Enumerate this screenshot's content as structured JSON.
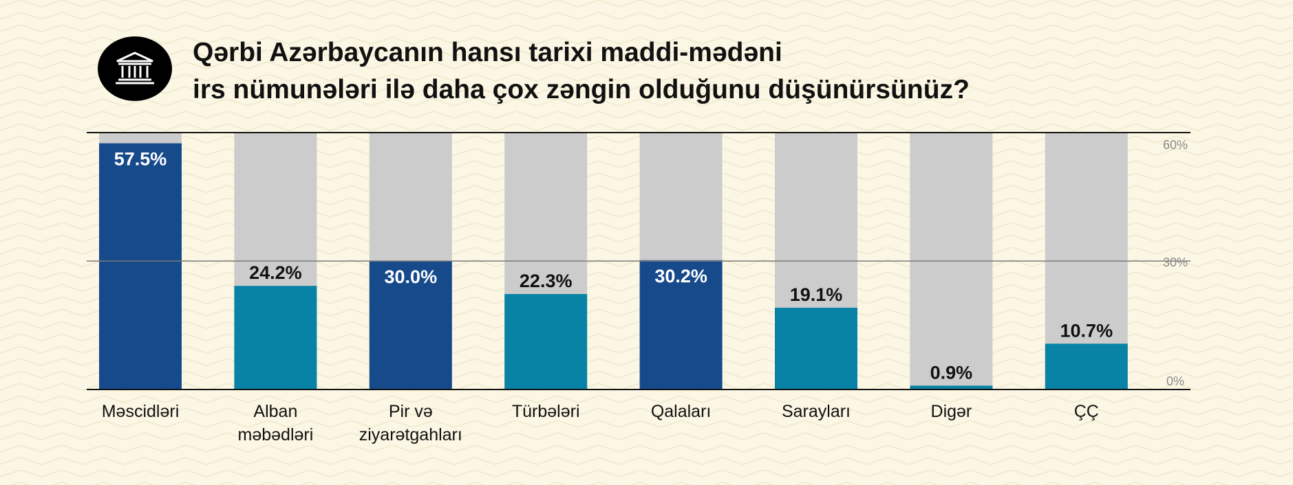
{
  "title_lines": [
    "Qərbi Azərbaycanın hansı tarixi maddi-mədəni",
    "irs nümunələri ilə daha çox zəngin olduğunu düşünürsünüz?"
  ],
  "colors": {
    "background": "#fbf7e4",
    "track": "#cccccc",
    "dark_blue": "#174a8b",
    "teal": "#0883a6",
    "text": "#111111"
  },
  "icon": "museum-building-icon",
  "chart_data": {
    "type": "bar",
    "title": "Qərbi Azərbaycanın hansı tarixi maddi-mədəni irs nümunələri ilə daha çox zəngin olduğunu düşünürsünüz?",
    "categories": [
      "Məscidləri",
      "Alban məbədləri",
      "Pir və ziyarətgahları",
      "Türbələri",
      "Qalaları",
      "Sarayları",
      "Digər",
      "ÇÇ"
    ],
    "category_lines": [
      [
        "Məscidləri"
      ],
      [
        "Alban",
        "məbədləri"
      ],
      [
        "Pir və",
        "ziyarətgahları"
      ],
      [
        "Türbələri"
      ],
      [
        "Qalaları"
      ],
      [
        "Sarayları"
      ],
      [
        "Digər"
      ],
      [
        "ÇÇ"
      ]
    ],
    "values": [
      57.5,
      24.2,
      30.0,
      22.3,
      30.2,
      19.1,
      0.9,
      10.7
    ],
    "value_labels": [
      "57.5%",
      "24.2%",
      "30.0%",
      "22.3%",
      "30.2%",
      "19.1%",
      "0.9%",
      "10.7%"
    ],
    "bar_colors": [
      "#174a8b",
      "#0883a6",
      "#174a8b",
      "#0883a6",
      "#174a8b",
      "#0883a6",
      "#0883a6",
      "#0883a6"
    ],
    "label_inside": [
      true,
      false,
      true,
      false,
      true,
      false,
      false,
      false
    ],
    "ylim": [
      0,
      60
    ],
    "y_ticks": [
      0,
      30,
      60
    ],
    "y_tick_labels": [
      "0%",
      "30%",
      "60%"
    ],
    "y_axis_position": "right",
    "gridline_at": 30,
    "xlabel": "",
    "ylabel": "",
    "legend": "none"
  }
}
